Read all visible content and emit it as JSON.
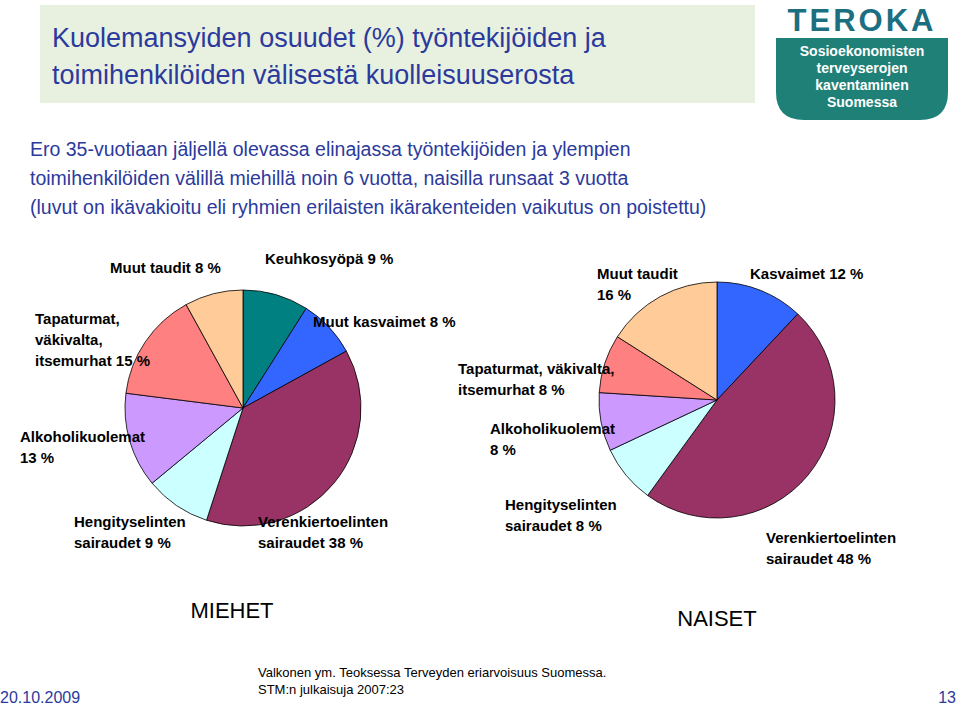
{
  "title": [
    "Kuolemansyiden osuudet (%) työntekijöiden ja",
    "toimihenkilöiden välisestä kuolleisuuserosta"
  ],
  "subtitle": [
    "Ero 35-vuotiaan jäljellä olevassa elinajassa työntekijöiden ja ylempien",
    "toimihenkilöiden välillä miehillä noin 6 vuotta, naisilla runsaat 3 vuotta",
    "(luvut on ikävakioitu eli ryhmien erilaisten ikärakenteiden vaikutus on poistettu)"
  ],
  "logo": {
    "name": "TEROKA",
    "lines": [
      "Sosioekonomisten",
      "terveyserojen",
      "kaventaminen",
      "Suomessa"
    ]
  },
  "source": [
    "Valkonen ym. Teoksessa Terveyden eriarvoisuus Suomessa.",
    "STM:n julkaisuja 2007:23"
  ],
  "date": "20.10.2009",
  "page": 13,
  "chart_data": [
    {
      "type": "pie",
      "title": "MIEHET",
      "categories": [
        "Keuhkosyöpä",
        "Muut kasvaimet",
        "Verenkiertoelinten sairaudet",
        "Hengityselinten sairaudet",
        "Alkoholikuolemat",
        "Tapaturmat, väkivalta, itsemurhat",
        "Muut taudit"
      ],
      "values": [
        9,
        8,
        38,
        9,
        13,
        15,
        8
      ],
      "value_labels": [
        "9 %",
        "8 %",
        "38 %",
        "9 %",
        "13 %",
        "15 %",
        "8 %"
      ],
      "colors": [
        "#008080",
        "#3366ff",
        "#993366",
        "#ccffff",
        "#cc99ff",
        "#ff8080",
        "#ffcc99"
      ],
      "data_labels": true
    },
    {
      "type": "pie",
      "title": "NAISET",
      "categories": [
        "Kasvaimet",
        "Verenkiertoelinten sairaudet",
        "Hengityselinten sairaudet",
        "Alkoholikuolemat",
        "Tapaturmat, väkivalta, itsemurhat",
        "Muut taudit"
      ],
      "values": [
        12,
        48,
        8,
        8,
        8,
        16
      ],
      "value_labels": [
        "12 %",
        "48 %",
        "8 %",
        "8 %",
        "8 %",
        "16 %"
      ],
      "colors": [
        "#3366ff",
        "#993366",
        "#ccffff",
        "#cc99ff",
        "#ff8080",
        "#ffcc99"
      ],
      "data_labels": true
    }
  ]
}
